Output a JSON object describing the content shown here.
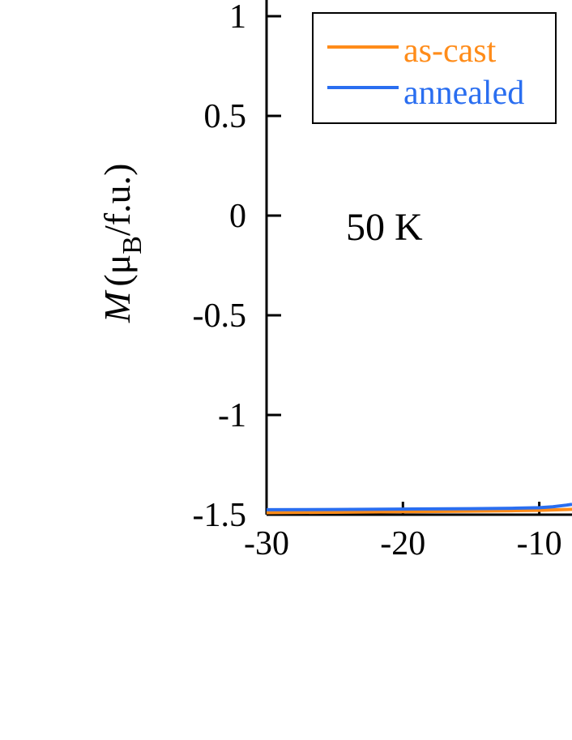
{
  "chart_data": {
    "type": "line",
    "annotation": "50 K",
    "ylabel": {
      "main": "M",
      "mu": "(μ",
      "sub": "B",
      "rest": "/f.u.)"
    },
    "xlim": [
      -30,
      -7.6
    ],
    "ylim": [
      -1.5,
      1.02
    ],
    "x_ticks": [
      -30,
      -20,
      -10
    ],
    "x_tick_labels": [
      "-30",
      "-20",
      "-10"
    ],
    "y_ticks": [
      -1.5,
      -1,
      -0.5,
      0,
      0.5,
      1
    ],
    "y_tick_labels": [
      "-1.5",
      "-1",
      "-0.5",
      "0",
      "0.5",
      "1"
    ],
    "legend_position": "top-right",
    "series": [
      {
        "name": "as-cast",
        "color": "#ff8c1a",
        "x": [
          -30,
          -25,
          -20,
          -15,
          -12,
          -10,
          -9,
          -8,
          -7.6
        ],
        "y": [
          -1.49,
          -1.488,
          -1.485,
          -1.482,
          -1.48,
          -1.478,
          -1.476,
          -1.474,
          -1.473
        ]
      },
      {
        "name": "annealed",
        "color": "#2a6ef0",
        "x": [
          -30,
          -25,
          -20,
          -15,
          -12,
          -10,
          -9,
          -8,
          -7.6
        ],
        "y": [
          -1.475,
          -1.474,
          -1.472,
          -1.47,
          -1.468,
          -1.465,
          -1.46,
          -1.452,
          -1.448
        ]
      }
    ]
  }
}
